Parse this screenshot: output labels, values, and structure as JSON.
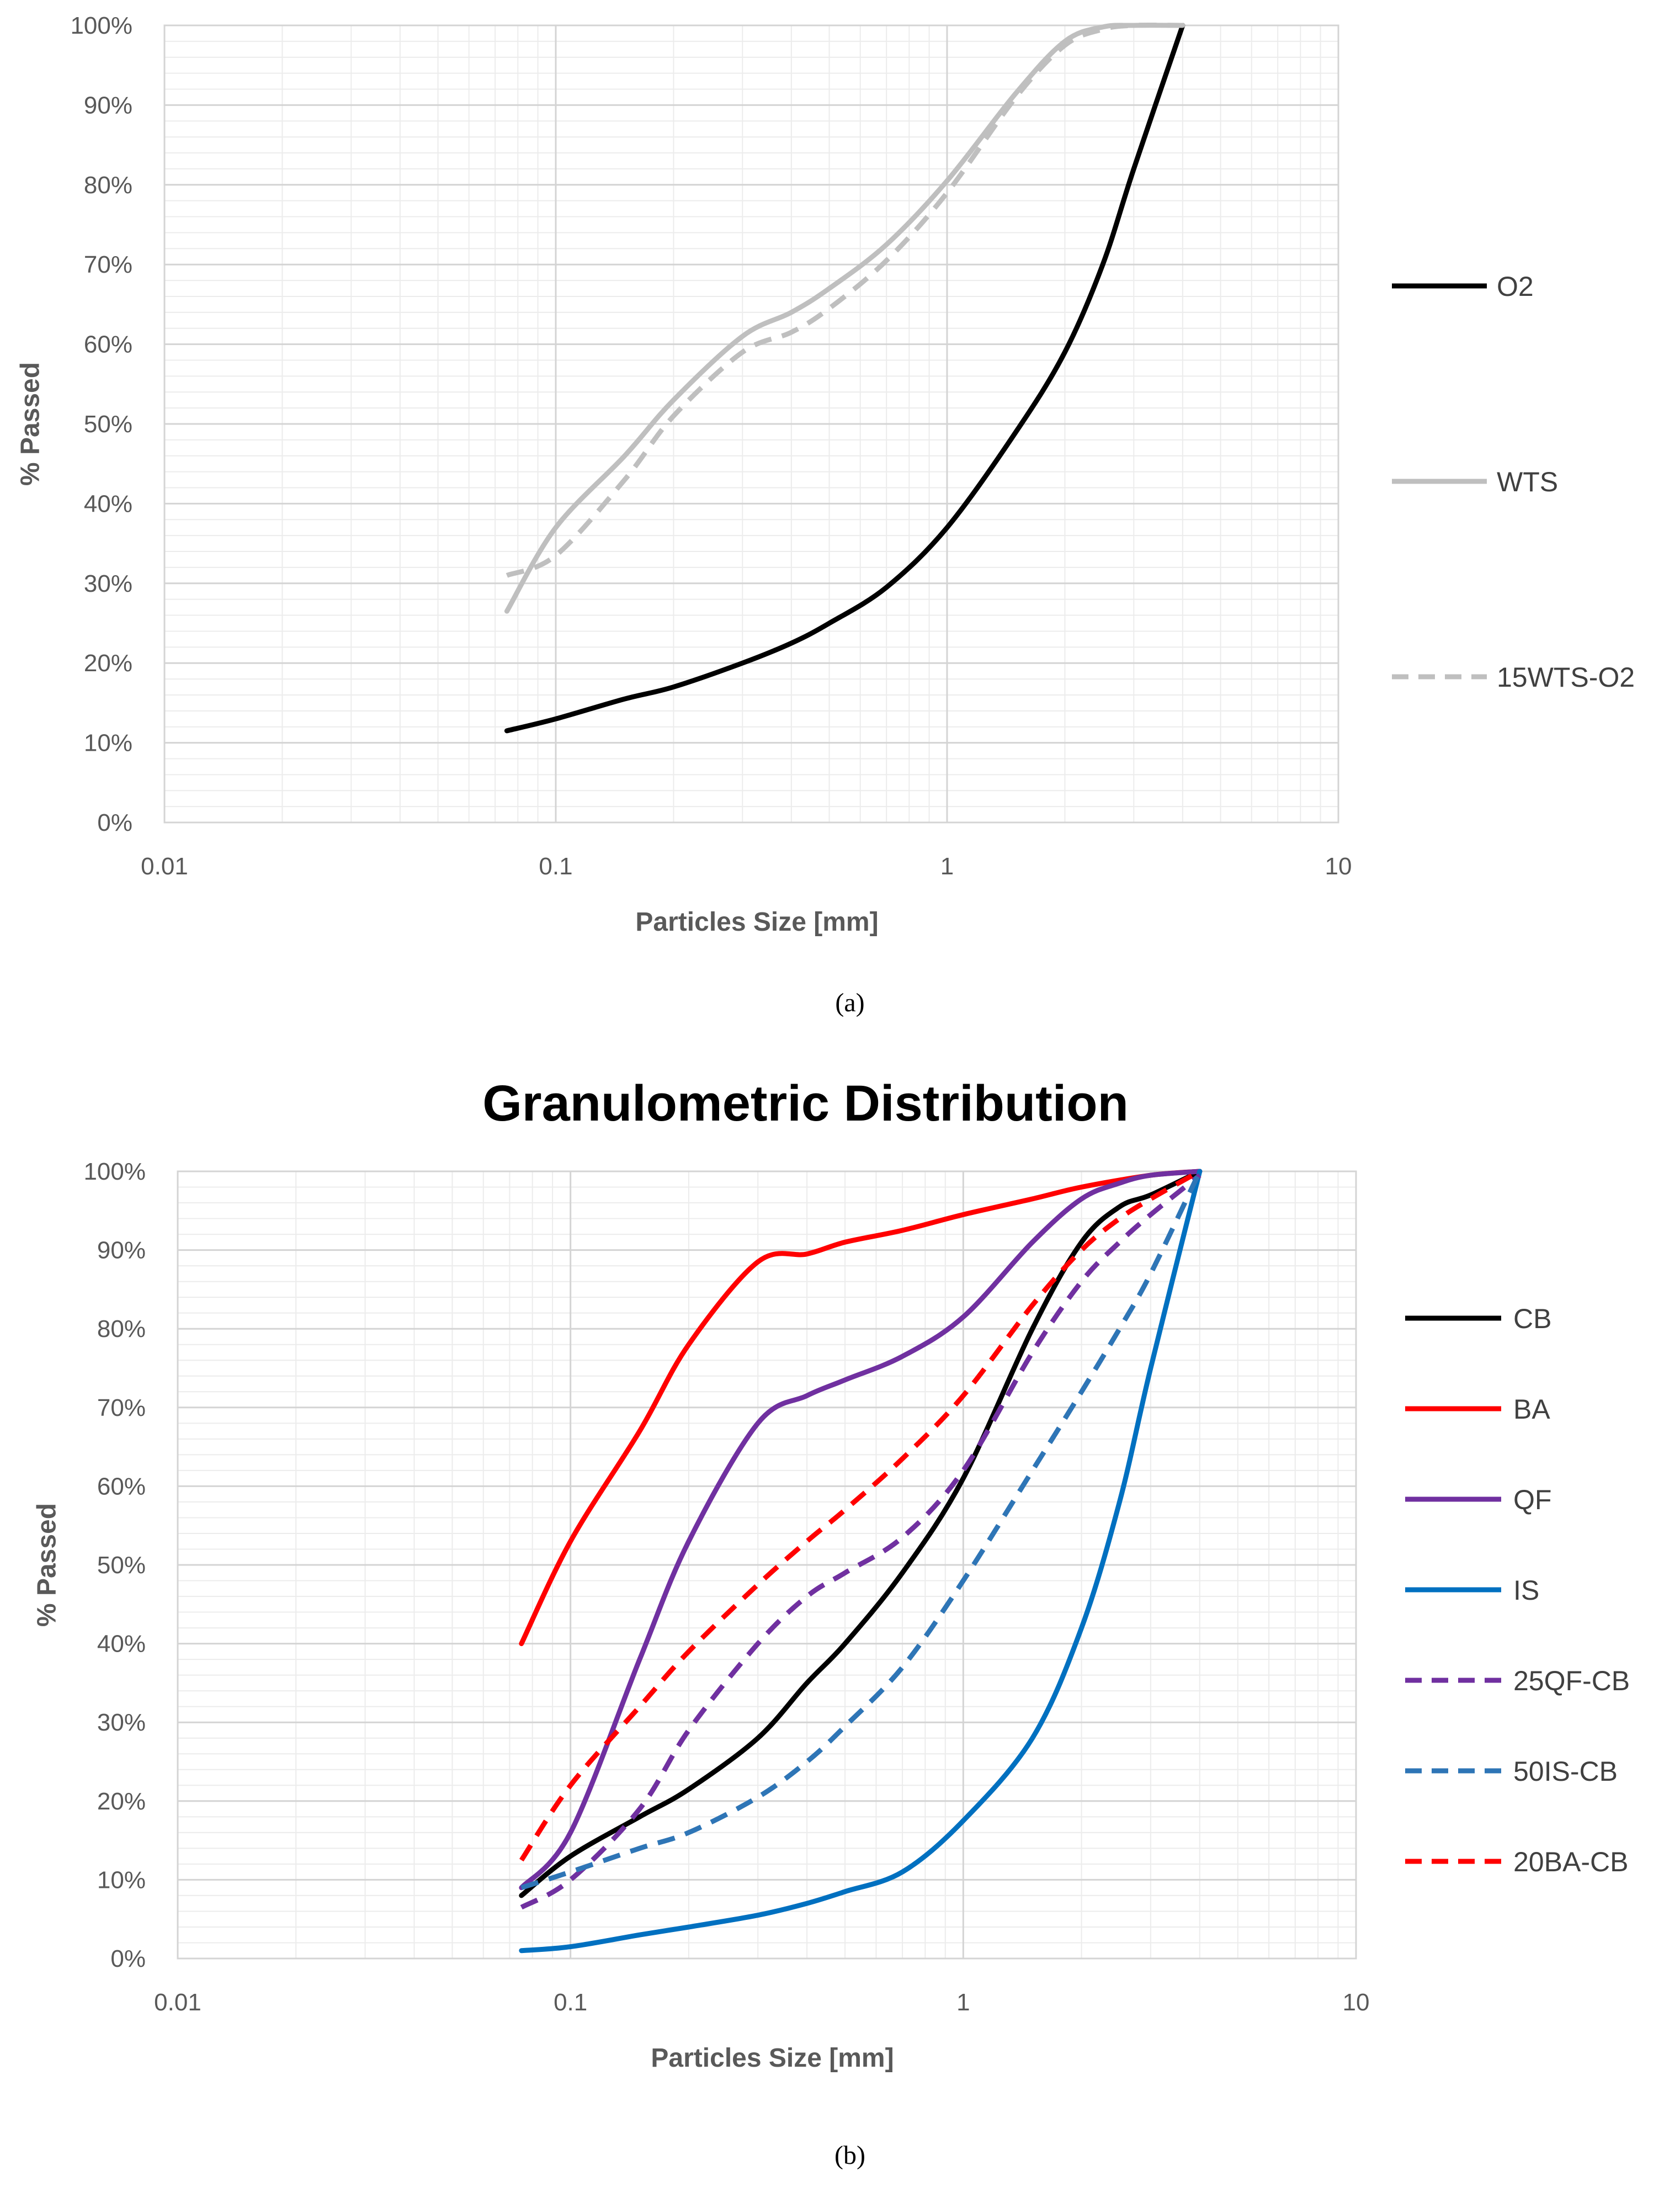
{
  "chart_data": [
    {
      "type": "line",
      "title": "",
      "caption": "(a)",
      "xlabel": "Particles Size [mm]",
      "ylabel": "% Passed",
      "xscale": "log",
      "xlim": [
        0.01,
        10
      ],
      "ylim": [
        0,
        100
      ],
      "x_tick_labels": [
        "0.01",
        "0.1",
        "1",
        "10"
      ],
      "y_tick_labels": [
        "0%",
        "10%",
        "20%",
        "30%",
        "40%",
        "50%",
        "60%",
        "70%",
        "80%",
        "90%",
        "100%"
      ],
      "grid": true,
      "legend_position": "right",
      "series": [
        {
          "name": "O2",
          "color": "#000000",
          "dash": "solid",
          "x": [
            0.075,
            0.1,
            0.15,
            0.2,
            0.3,
            0.4,
            0.5,
            0.7,
            1.0,
            1.5,
            2.0,
            2.5,
            3.0,
            4.0
          ],
          "y": [
            11.5,
            13,
            15.5,
            17,
            20,
            22.5,
            25,
            29.5,
            37,
            49,
            59,
            70,
            82,
            100
          ]
        },
        {
          "name": "WTS",
          "color": "#BFBFBF",
          "dash": "solid",
          "x": [
            0.075,
            0.1,
            0.15,
            0.2,
            0.3,
            0.4,
            0.5,
            0.7,
            1.0,
            1.5,
            2.0,
            2.5,
            3.0,
            4.0
          ],
          "y": [
            26.5,
            37,
            46,
            53,
            61,
            64,
            67,
            72.5,
            80.5,
            91.5,
            98,
            99.8,
            100,
            100
          ]
        },
        {
          "name": "15WTS-O2",
          "color": "#BFBFBF",
          "dash": "dashed",
          "x": [
            0.075,
            0.1,
            0.15,
            0.2,
            0.3,
            0.4,
            0.5,
            0.7,
            1.0,
            1.5,
            2.0,
            2.5,
            3.0,
            4.0
          ],
          "y": [
            31,
            33.5,
            43,
            51,
            59,
            61.5,
            64.5,
            70.5,
            79,
            91,
            97.5,
            99.5,
            100,
            100
          ]
        }
      ]
    },
    {
      "type": "line",
      "title": "Granulometric Distribution",
      "caption": "(b)",
      "xlabel": "Particles Size [mm]",
      "ylabel": "% Passed",
      "xscale": "log",
      "xlim": [
        0.01,
        10
      ],
      "ylim": [
        0,
        100
      ],
      "x_tick_labels": [
        "0.01",
        "0.1",
        "1",
        "10"
      ],
      "y_tick_labels": [
        "0%",
        "10%",
        "20%",
        "30%",
        "40%",
        "50%",
        "60%",
        "70%",
        "80%",
        "90%",
        "100%"
      ],
      "grid": true,
      "legend_position": "right",
      "series": [
        {
          "name": "CB",
          "color": "#000000",
          "dash": "solid",
          "x": [
            0.075,
            0.1,
            0.15,
            0.2,
            0.3,
            0.4,
            0.5,
            0.7,
            1.0,
            1.5,
            2.0,
            2.5,
            3.0,
            4.0
          ],
          "y": [
            8,
            13,
            18,
            21.5,
            28,
            35,
            40,
            49,
            61,
            80,
            91,
            95.5,
            97,
            100
          ]
        },
        {
          "name": "BA",
          "color": "#FF0000",
          "dash": "solid",
          "x": [
            0.075,
            0.1,
            0.15,
            0.2,
            0.3,
            0.4,
            0.5,
            0.7,
            1.0,
            1.5,
            2.0,
            3.0,
            4.0
          ],
          "y": [
            40,
            53,
            67,
            78,
            88.5,
            89.5,
            91,
            92.5,
            94.5,
            96.5,
            98,
            99.5,
            100
          ]
        },
        {
          "name": "QF",
          "color": "#7030A0",
          "dash": "solid",
          "x": [
            0.075,
            0.1,
            0.15,
            0.2,
            0.3,
            0.4,
            0.5,
            0.7,
            1.0,
            1.5,
            2.0,
            2.5,
            3.0,
            4.0
          ],
          "y": [
            9,
            16,
            38,
            53,
            68,
            71.5,
            73.5,
            76.5,
            81.5,
            91,
            96.5,
            98.5,
            99.5,
            100
          ]
        },
        {
          "name": "IS",
          "color": "#0070C0",
          "dash": "solid",
          "x": [
            0.075,
            0.1,
            0.15,
            0.2,
            0.3,
            0.4,
            0.5,
            0.7,
            1.0,
            1.5,
            2.0,
            2.5,
            3.0,
            4.0
          ],
          "y": [
            1,
            1.5,
            3,
            4,
            5.5,
            7,
            8.5,
            11,
            17.5,
            28,
            42,
            58,
            75,
            100
          ]
        },
        {
          "name": "25QF-CB",
          "color": "#7030A0",
          "dash": "dashed",
          "x": [
            0.075,
            0.1,
            0.15,
            0.2,
            0.3,
            0.4,
            0.5,
            0.7,
            1.0,
            1.5,
            2.0,
            2.5,
            3.0,
            4.0
          ],
          "y": [
            6.5,
            10,
            19,
            29,
            40,
            46,
            49,
            53.5,
            62,
            77,
            86,
            91,
            94.5,
            99.5
          ]
        },
        {
          "name": "50IS-CB",
          "color": "#2E75B6",
          "dash": "dashed",
          "x": [
            0.075,
            0.1,
            0.15,
            0.2,
            0.3,
            0.4,
            0.5,
            0.7,
            1.0,
            1.5,
            2.0,
            2.5,
            3.0,
            4.0
          ],
          "y": [
            9,
            11,
            14,
            16,
            20.5,
            25,
            29.5,
            37,
            48,
            62,
            72,
            80,
            87,
            100
          ]
        },
        {
          "name": "20BA-CB",
          "color": "#FF0000",
          "dash": "dashed",
          "x": [
            0.075,
            0.1,
            0.15,
            0.2,
            0.3,
            0.4,
            0.5,
            0.7,
            1.0,
            1.5,
            2.0,
            2.5,
            3.0,
            4.0
          ],
          "y": [
            12.5,
            22,
            32,
            39,
            47.5,
            53,
            57,
            63.5,
            71.5,
            83,
            90,
            94,
            96.5,
            100
          ]
        }
      ]
    }
  ]
}
